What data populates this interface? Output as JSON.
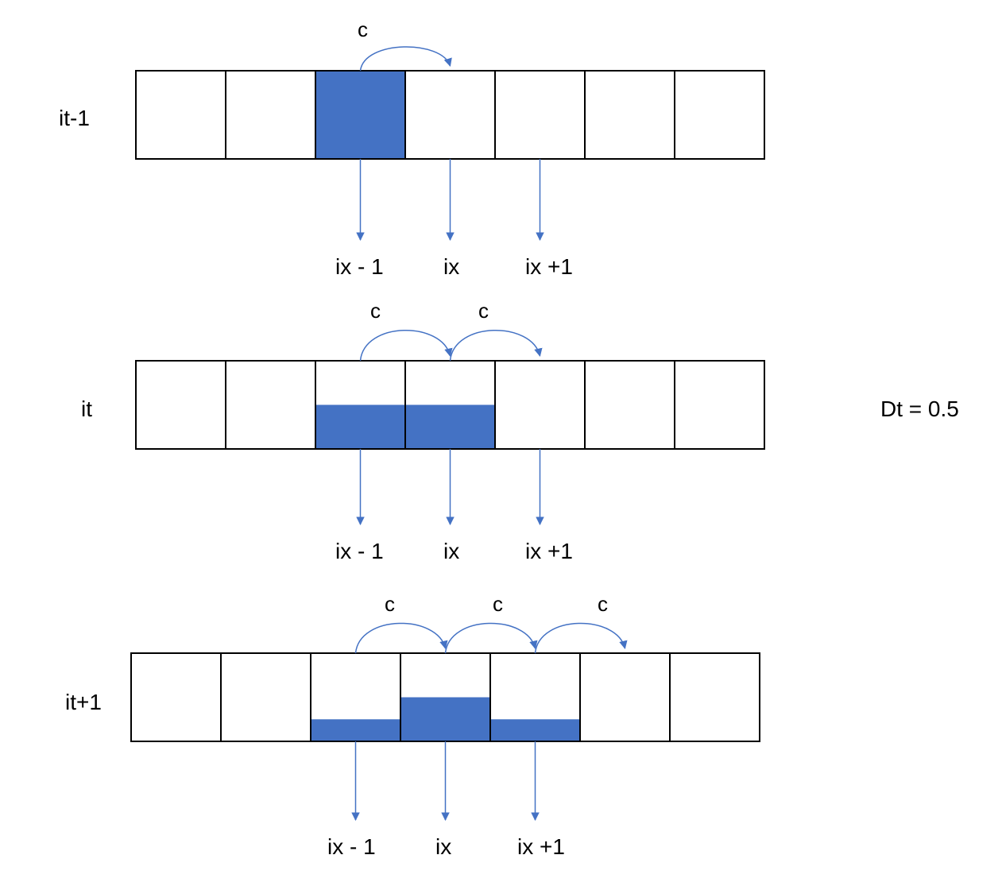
{
  "colors": {
    "fill": "#4472C4",
    "arrow": "#4472C4",
    "cell_border": "#000000"
  },
  "dt_label": "Dt = 0.5",
  "rows": [
    {
      "label": "it-1",
      "fills": [
        0,
        0,
        1,
        0,
        0,
        0,
        0
      ],
      "transport_labels": [
        "c"
      ],
      "index_labels": [
        "ix - 1",
        "ix",
        "ix +1"
      ]
    },
    {
      "label": "it",
      "fills": [
        0,
        0,
        0.5,
        0.5,
        0,
        0,
        0
      ],
      "transport_labels": [
        "c",
        "c"
      ],
      "index_labels": [
        "ix - 1",
        "ix",
        "ix +1"
      ]
    },
    {
      "label": "it+1",
      "fills": [
        0,
        0,
        0.25,
        0.5,
        0.25,
        0,
        0
      ],
      "transport_labels": [
        "c",
        "c",
        "c"
      ],
      "index_labels": [
        "ix - 1",
        "ix",
        "ix +1"
      ]
    }
  ]
}
